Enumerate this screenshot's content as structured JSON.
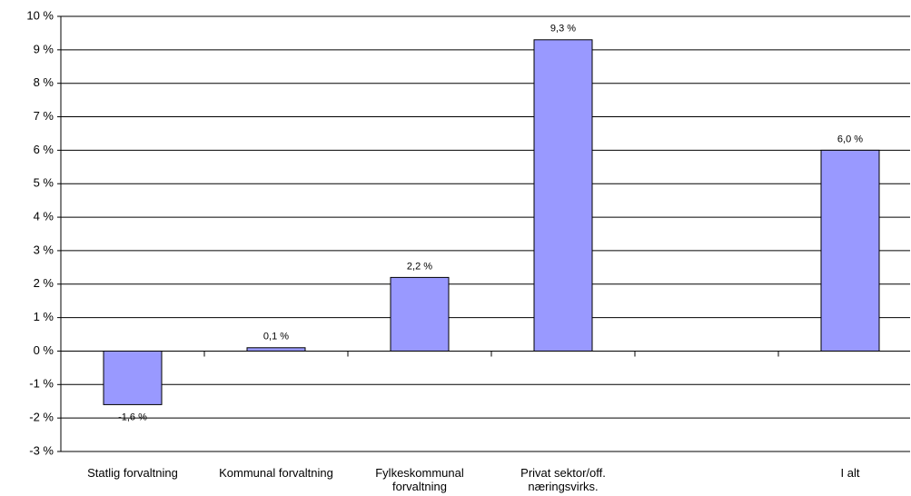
{
  "chart_data": {
    "type": "bar",
    "categories": [
      "Statlig forvaltning",
      "Kommunal forvaltning",
      "Fylkeskommunal forvaltning",
      "Privat sektor/off. næringsvirks.",
      null,
      "I alt"
    ],
    "values": [
      -1.6,
      0.1,
      2.2,
      9.3,
      null,
      6.0
    ],
    "value_labels": [
      "-1,6 %",
      "0,1 %",
      "2,2 %",
      "9,3 %",
      null,
      "6,0 %"
    ],
    "color": "#9999ff",
    "ylim": [
      -3,
      10
    ],
    "yticks": [
      {
        "value": -3,
        "label": "-3 %"
      },
      {
        "value": -2,
        "label": "-2 %"
      },
      {
        "value": -1,
        "label": "-1 %"
      },
      {
        "value": 0,
        "label": "0 %"
      },
      {
        "value": 1,
        "label": "1 %"
      },
      {
        "value": 2,
        "label": "2 %"
      },
      {
        "value": 3,
        "label": "3 %"
      },
      {
        "value": 4,
        "label": "4 %"
      },
      {
        "value": 5,
        "label": "5 %"
      },
      {
        "value": 6,
        "label": "6 %"
      },
      {
        "value": 7,
        "label": "7 %"
      },
      {
        "value": 8,
        "label": "8 %"
      },
      {
        "value": 9,
        "label": "9 %"
      },
      {
        "value": 10,
        "label": "10 %"
      }
    ],
    "grid": true
  }
}
